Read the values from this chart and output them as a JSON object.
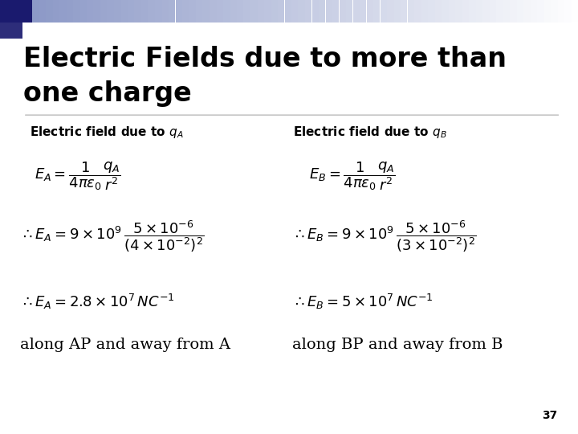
{
  "bg_color": "#ffffff",
  "title_line1": "Electric Fields due to more than",
  "title_line2": "one charge",
  "title_fontsize": 24,
  "header_left": "Electric field due to $\\mathbf{q_A}$",
  "header_right": "Electric field due to $\\mathbf{q_B}$",
  "header_fontsize": 11,
  "eq1_left": "$E_A = \\dfrac{1}{4\\pi\\varepsilon_0}\\dfrac{q_A}{r^2}$",
  "eq1_right": "$E_B = \\dfrac{1}{4\\pi\\varepsilon_0}\\dfrac{q_A}{r^2}$",
  "eq2_left": "$\\therefore E_A = 9\\times10^9\\,\\dfrac{5\\times10^{-6}}{(4\\times10^{-2})^2}$",
  "eq2_right": "$\\therefore E_B = 9\\times10^9\\,\\dfrac{5\\times10^{-6}}{(3\\times10^{-2})^2}$",
  "eq3_left": "$\\therefore E_A = 2.8\\times10^7\\,NC^{-1}$",
  "eq3_right": "$\\therefore E_B = 5\\times10^7\\,NC^{-1}$",
  "text_left": "along AP and away from A",
  "text_right": "along BP and away from B",
  "text_fontsize": 14,
  "eq_fontsize": 13,
  "page_num": "37",
  "corner_dark": "#1a1a6e",
  "corner_dark2": "#2d2d7a",
  "grad_start": "#8090c0",
  "grad_end": "#ffffff"
}
